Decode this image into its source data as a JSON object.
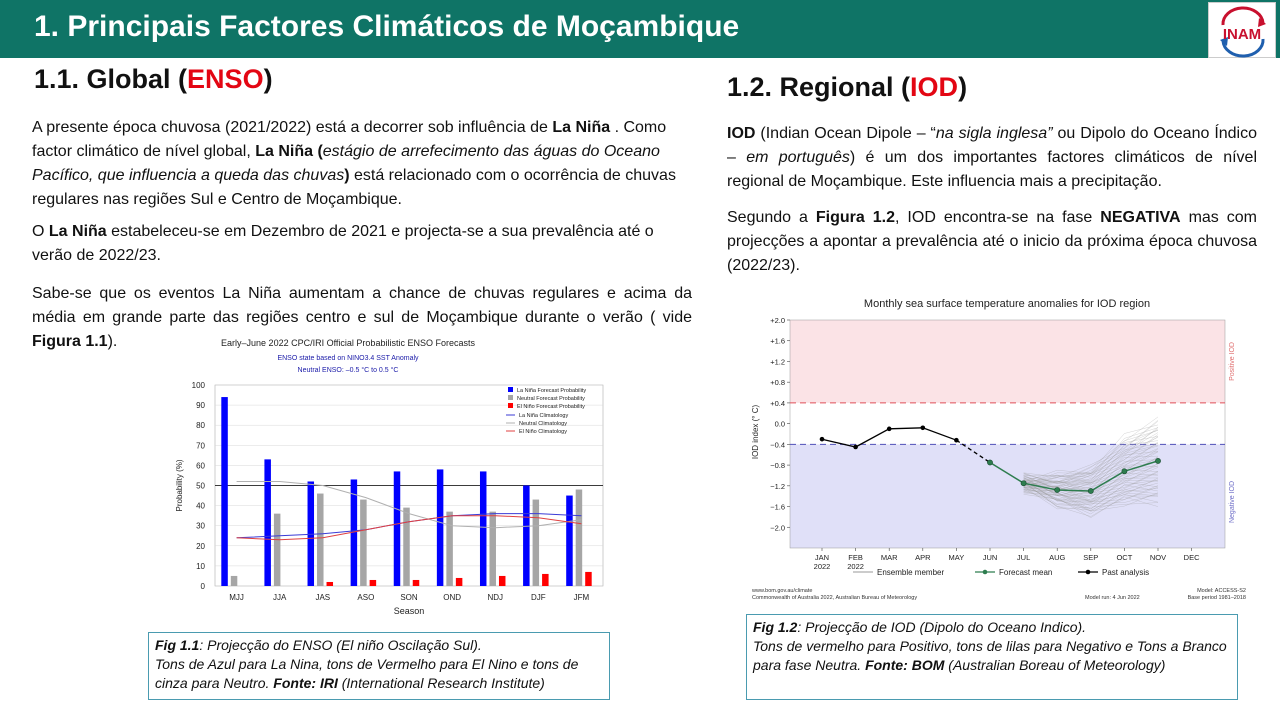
{
  "header": {
    "title": "1. Principais Factores Climáticos de Moçambique",
    "logo_text": "INAM"
  },
  "left": {
    "heading_prefix": "1.1.  Global (",
    "heading_accent": "ENSO",
    "heading_suffix": ")",
    "p1": {
      "t1": "A presente época chuvosa (2021/2022) está a decorrer sob influência de ",
      "b1": "La Niña",
      "t2": " . Como factor climático de nível global, ",
      "b2": "La Niña (",
      "i1": "estágio de arrefecimento das águas do Oceano Pacífico, que influencia a queda das chuvas",
      "b3": ")",
      "t3": " está relacionado com o ocorrência de chuvas regulares nas regiões Sul e Centro de Moçambique."
    },
    "p2": {
      "t1": " O ",
      "b1": "La Niña",
      "t2": "  estabeleceu-se em Dezembro de 2021 e projecta-se a sua prevalência até o verão de 2022/23."
    },
    "p3": {
      "t1": "Sabe-se que os eventos La Niña aumentam a chance de chuvas regulares e acima da média em grande parte das regiões centro e sul de Moçambique durante o verão ( vide ",
      "b1": "Figura 1.1",
      "t2": ")."
    },
    "caption": {
      "b1": "Fig 1.1",
      "i1": ": Projecção do ENSO (El niño Oscilação Sul).",
      "i2": "Tons de Azul para La Nina, tons de Vermelho para El Nino e tons de cinza para Neutro. ",
      "b2": "Fonte: IRI",
      "i3": " (International Research Institute)"
    }
  },
  "right": {
    "heading_prefix": "1.2. Regional (",
    "heading_accent": "IOD",
    "heading_suffix": ")",
    "p4": {
      "b1": "IOD",
      "t1": " (Indian Ocean Dipole – “",
      "i1": "na sigla inglesa”",
      "t2": " ou Dipolo do Oceano Índico – ",
      "i2": "em português",
      "t3": ") é um dos importantes factores climáticos de nível regional de Moçambique. Este influencia mais a precipitação."
    },
    "p5": {
      "t1": "Segundo a ",
      "b1": "Figura 1.2",
      "t2": ", IOD encontra-se na fase ",
      "b2": "NEGATIVA",
      "t3": " mas com projecções a apontar a prevalência até o inicio da próxima época chuvosa (2022/23)."
    },
    "caption": {
      "b1": "Fig 1.2",
      "i1": ": Projecção de IOD (Dipolo do Oceano Indico).",
      "i2": "Tons de vermelho para Positivo, tons de lilas para Negativo e Tons a Branco para fase Neutra. ",
      "b2": "Fonte: BOM",
      "i3": " (Australian Boreau of Meteorology)"
    }
  },
  "colors": {
    "title_bar": "#0f7466",
    "accent_red": "#e30613",
    "la_nina_blue": "#0000ff",
    "neutral_gray": "#a6a6a6",
    "el_nino_red": "#ff0000",
    "iod_positive_bg": "#fbe3e6",
    "iod_negative_bg": "#e0e0f8",
    "forecast_green": "#2e7d4f"
  },
  "chart_data": [
    {
      "type": "bar",
      "title": "Early–June 2022 CPC/IRI Official Probabilistic ENSO Forecasts",
      "subtitle1": "ENSO state based on NINO3.4 SST Anomaly",
      "subtitle2": "Neutral ENSO: –0.5 °C to 0.5 °C",
      "xlabel": "Season",
      "ylabel": "Probability (%)",
      "ylim": [
        0,
        100
      ],
      "yticks": [
        0,
        10,
        20,
        30,
        40,
        50,
        60,
        70,
        80,
        90,
        100
      ],
      "categories": [
        "MJJ",
        "JJA",
        "JAS",
        "ASO",
        "SON",
        "OND",
        "NDJ",
        "DJF",
        "JFM"
      ],
      "series": [
        {
          "name": "La Niña Forecast Probability",
          "color": "#0000ff",
          "values": [
            94,
            63,
            52,
            53,
            57,
            58,
            57,
            50,
            45
          ]
        },
        {
          "name": "Neutral Forecast Probability",
          "color": "#a6a6a6",
          "values": [
            5,
            36,
            46,
            43,
            39,
            37,
            37,
            43,
            48
          ]
        },
        {
          "name": "El Niño Forecast Probability",
          "color": "#ff0000",
          "values": [
            0,
            0,
            2,
            3,
            3,
            4,
            5,
            6,
            7
          ]
        }
      ],
      "climatology": [
        {
          "name": "La Niña Climatology",
          "color": "#3b3bd6",
          "values": [
            24,
            25,
            26,
            28,
            32,
            35,
            36,
            36,
            35
          ]
        },
        {
          "name": "Neutral Climatology",
          "color": "#b0b0b0",
          "values": [
            52,
            52,
            50,
            44,
            36,
            30,
            29,
            30,
            33
          ]
        },
        {
          "name": "El Niño Climatology",
          "color": "#e04040",
          "values": [
            24,
            23,
            24,
            28,
            32,
            35,
            35,
            34,
            31
          ]
        }
      ],
      "reference_line": 50,
      "legend": "top-right"
    },
    {
      "type": "line",
      "title": "Monthly sea surface temperature anomalies for IOD region",
      "ylabel": "IOD index (° C)",
      "ylim": [
        -2.4,
        2.0
      ],
      "yticks": [
        2.0,
        1.6,
        1.2,
        0.8,
        0.4,
        0.0,
        -0.4,
        -0.8,
        -1.2,
        -1.6,
        -2.0
      ],
      "ytick_labels": [
        "+2.0",
        "+1.6",
        "+1.2",
        "+0.8",
        "+0.4",
        "0.0",
        "−0.4",
        "−0.8",
        "−1.2",
        "−1.6",
        "−2.0"
      ],
      "x_labels": [
        "JAN",
        "FEB",
        "MAR",
        "APR",
        "MAY",
        "JUN",
        "JUL",
        "AUG",
        "SEP",
        "OCT",
        "NOV",
        "DEC"
      ],
      "x_sublabels": [
        "2022",
        "2022",
        "",
        "",
        "",
        "",
        "",
        "",
        "",
        "",
        "",
        ""
      ],
      "thresholds": [
        0.4,
        -0.4
      ],
      "positive_label": "Positive IOD",
      "negative_label": "Negative IOD",
      "past_analysis": [
        -0.3,
        -0.45,
        -0.1,
        -0.08,
        -0.32
      ],
      "forecast_mean": [
        null,
        null,
        null,
        null,
        null,
        -0.75,
        -1.15,
        -1.28,
        -1.3,
        -0.92,
        -0.72,
        null
      ],
      "legend": [
        "Ensemble member",
        "Forecast mean",
        "Past analysis"
      ],
      "footer_left1": "www.bom.gov.au/climate",
      "footer_left2": "Commonwealth of Australia 2022, Australian Bureau of Meteorology",
      "footer_mid": "Model run: 4 Jun 2022",
      "footer_right1": "Model: ACCESS-S2",
      "footer_right2": "Base period 1981–2018"
    }
  ]
}
